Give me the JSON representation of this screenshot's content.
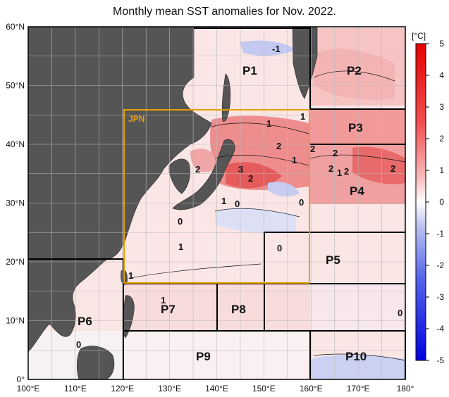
{
  "title": "Monthly mean SST anomalies for Nov. 2022.",
  "map": {
    "lon_range": [
      100,
      180
    ],
    "lat_range": [
      0,
      60
    ],
    "lon_ticks": [
      "100°E",
      "110°E",
      "120°E",
      "130°E",
      "140°E",
      "150°E",
      "160°E",
      "170°E",
      "180°"
    ],
    "lat_ticks": [
      "0°",
      "10°N",
      "20°N",
      "30°N",
      "40°N",
      "50°N",
      "60°N"
    ],
    "jpn_label": "JPN",
    "region_labels": [
      "P1",
      "P2",
      "P3",
      "P4",
      "P5",
      "P6",
      "P7",
      "P8",
      "P9",
      "P10"
    ],
    "contour_labels": [
      "-1",
      "1",
      "1",
      "2",
      "2",
      "2",
      "2",
      "1",
      "2",
      "2",
      "1",
      "2",
      "3",
      "2",
      "1",
      "0",
      "0",
      "0",
      "1",
      "0",
      "1",
      "1",
      "0",
      "0"
    ],
    "colors": {
      "land": "#555555",
      "jpn_box": "#e8a000",
      "border": "#000000"
    }
  },
  "colorbar": {
    "unit": "[°C]",
    "ticks": [
      "5",
      "4",
      "3",
      "2",
      "1",
      "0",
      "-1",
      "-2",
      "-3",
      "-4",
      "-5"
    ],
    "range": [
      -5,
      5
    ]
  }
}
